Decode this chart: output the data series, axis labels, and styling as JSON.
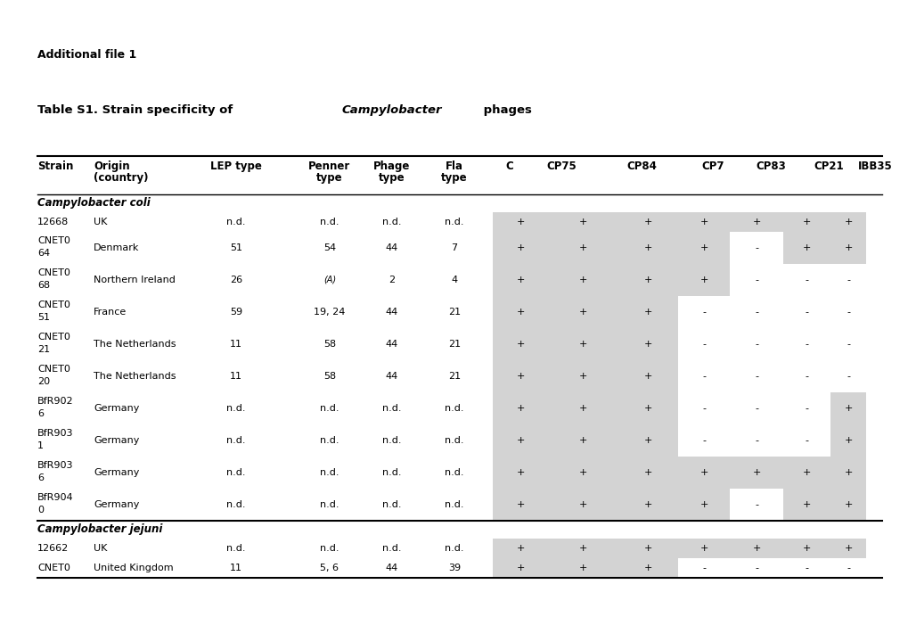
{
  "title_line1": "Additional file 1",
  "title_line2_prefix": "Table S1. Strain specificity of ",
  "title_line2_italic": "Campylobacter",
  "title_line2_suffix": " phages",
  "section_coli": "Campylobacter coli",
  "section_jejuni": "Campylobacter jejuni",
  "col_headers_row1": [
    "Strain",
    "Origin",
    "LEP type",
    "Penner",
    "Phage",
    "Fla",
    "C",
    "CP75",
    "CP84",
    "CP7",
    "CP83",
    "CP21",
    "IBB35"
  ],
  "col_headers_row2": [
    "",
    "(country)",
    "",
    "type",
    "type",
    "type",
    "",
    "",
    "",
    "",
    "",
    "",
    ""
  ],
  "rows": [
    {
      "strain1": "12668",
      "strain2": "",
      "origin": "UK",
      "lep": "n.d.",
      "penner": "n.d.",
      "phage": "n.d.",
      "fla": "n.d.",
      "C": "+",
      "CP75": "+",
      "CP84": "+",
      "CP7": "+",
      "CP83": "+",
      "CP21": "+",
      "IBB35": "+",
      "section": "coli"
    },
    {
      "strain1": "CNET0",
      "strain2": "64",
      "origin": "Denmark",
      "lep": "51",
      "penner": "54",
      "phage": "44",
      "fla": "7",
      "C": "+",
      "CP75": "+",
      "CP84": "+",
      "CP7": "+",
      "CP83": "-",
      "CP21": "+",
      "IBB35": "+",
      "section": "coli"
    },
    {
      "strain1": "CNET0",
      "strain2": "68",
      "origin": "Northern Ireland",
      "lep": "26",
      "penner": "(A)",
      "phage": "2",
      "fla": "4",
      "C": "+",
      "CP75": "+",
      "CP84": "+",
      "CP7": "+",
      "CP83": "-",
      "CP21": "-",
      "IBB35": "-",
      "section": "coli"
    },
    {
      "strain1": "CNET0",
      "strain2": "51",
      "origin": "France",
      "lep": "59",
      "penner": "19, 24",
      "phage": "44",
      "fla": "21",
      "C": "+",
      "CP75": "+",
      "CP84": "+",
      "CP7": "-",
      "CP83": "-",
      "CP21": "-",
      "IBB35": "-",
      "section": "coli"
    },
    {
      "strain1": "CNET0",
      "strain2": "21",
      "origin": "The Netherlands",
      "lep": "11",
      "penner": "58",
      "phage": "44",
      "fla": "21",
      "C": "+",
      "CP75": "+",
      "CP84": "+",
      "CP7": "-",
      "CP83": "-",
      "CP21": "-",
      "IBB35": "-",
      "section": "coli"
    },
    {
      "strain1": "CNET0",
      "strain2": "20",
      "origin": "The Netherlands",
      "lep": "11",
      "penner": "58",
      "phage": "44",
      "fla": "21",
      "C": "+",
      "CP75": "+",
      "CP84": "+",
      "CP7": "-",
      "CP83": "-",
      "CP21": "-",
      "IBB35": "-",
      "section": "coli"
    },
    {
      "strain1": "BfR902",
      "strain2": "6",
      "origin": "Germany",
      "lep": "n.d.",
      "penner": "n.d.",
      "phage": "n.d.",
      "fla": "n.d.",
      "C": "+",
      "CP75": "+",
      "CP84": "+",
      "CP7": "-",
      "CP83": "-",
      "CP21": "-",
      "IBB35": "+",
      "section": "coli"
    },
    {
      "strain1": "BfR903",
      "strain2": "1",
      "origin": "Germany",
      "lep": "n.d.",
      "penner": "n.d.",
      "phage": "n.d.",
      "fla": "n.d.",
      "C": "+",
      "CP75": "+",
      "CP84": "+",
      "CP7": "-",
      "CP83": "-",
      "CP21": "-",
      "IBB35": "+",
      "section": "coli"
    },
    {
      "strain1": "BfR903",
      "strain2": "6",
      "origin": "Germany",
      "lep": "n.d.",
      "penner": "n.d.",
      "phage": "n.d.",
      "fla": "n.d.",
      "C": "+",
      "CP75": "+",
      "CP84": "+",
      "CP7": "+",
      "CP83": "+",
      "CP21": "+",
      "IBB35": "+",
      "section": "coli"
    },
    {
      "strain1": "BfR904",
      "strain2": "0",
      "origin": "Germany",
      "lep": "n.d.",
      "penner": "n.d.",
      "phage": "n.d.",
      "fla": "n.d.",
      "C": "+",
      "CP75": "+",
      "CP84": "+",
      "CP7": "+",
      "CP83": "-",
      "CP21": "+",
      "IBB35": "+",
      "section": "coli"
    },
    {
      "strain1": "12662",
      "strain2": "",
      "origin": "UK",
      "lep": "n.d.",
      "penner": "n.d.",
      "phage": "n.d.",
      "fla": "n.d.",
      "C": "+",
      "CP75": "+",
      "CP84": "+",
      "CP7": "+",
      "CP83": "+",
      "CP21": "+",
      "IBB35": "+",
      "section": "jejuni"
    },
    {
      "strain1": "CNET0",
      "strain2": "",
      "origin": "United Kingdom",
      "lep": "11",
      "penner": "5, 6",
      "phage": "44",
      "fla": "39",
      "C": "+",
      "CP75": "+",
      "CP84": "+",
      "CP7": "-",
      "CP83": "-",
      "CP21": "-",
      "IBB35": "-",
      "section": "jejuni"
    }
  ],
  "gray_patterns": [
    [
      1,
      1,
      1,
      1,
      1,
      1,
      1
    ],
    [
      1,
      1,
      1,
      1,
      0,
      1,
      1
    ],
    [
      1,
      1,
      1,
      1,
      0,
      0,
      0
    ],
    [
      1,
      1,
      1,
      0,
      0,
      0,
      0
    ],
    [
      1,
      1,
      1,
      0,
      0,
      0,
      0
    ],
    [
      1,
      1,
      1,
      0,
      0,
      0,
      0
    ],
    [
      1,
      1,
      1,
      0,
      0,
      0,
      1
    ],
    [
      1,
      1,
      1,
      0,
      0,
      0,
      1
    ],
    [
      1,
      1,
      1,
      1,
      1,
      1,
      1
    ],
    [
      1,
      1,
      1,
      1,
      0,
      1,
      1
    ],
    [
      1,
      1,
      1,
      1,
      1,
      1,
      1
    ],
    [
      1,
      1,
      1,
      0,
      0,
      0,
      0
    ]
  ],
  "bg_color": "#ffffff",
  "gray_color": "#d3d3d3"
}
